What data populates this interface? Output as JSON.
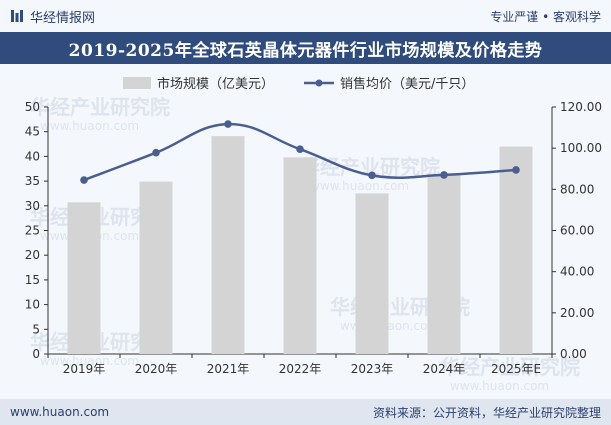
{
  "header": {
    "brand": "华经情报网",
    "tagline": "专业严谨 • 客观科学",
    "title": "2019-2025年全球石英晶体元器件行业市场规模及价格走势"
  },
  "footer": {
    "website": "www.huaon.com",
    "source": "资料来源：公开资料，华经产业研究院整理"
  },
  "watermark": {
    "text": "华经产业研究院",
    "sub": "www.huaon.com"
  },
  "colors": {
    "bar": "#d4d4d4",
    "line": "#4a5f8f",
    "title_bg": "#2f4c7c"
  },
  "chart_data": {
    "type": "bar",
    "categories": [
      "2019年",
      "2020年",
      "2021年",
      "2022年",
      "2023年",
      "2024年",
      "2025年E"
    ],
    "series": [
      {
        "name": "市场规模（亿美元）",
        "type": "bar",
        "axis": "left",
        "values": [
          30.7,
          34.9,
          44.1,
          39.8,
          32.5,
          36.5,
          42.0
        ]
      },
      {
        "name": "销售均价（美元/千只）",
        "type": "line",
        "axis": "right",
        "values": [
          84.5,
          97.8,
          111.7,
          99.5,
          86.8,
          87.0,
          89.4
        ]
      }
    ],
    "left_axis": {
      "min": 0,
      "max": 50,
      "step": 5,
      "ticks": [
        "0",
        "5",
        "10",
        "15",
        "20",
        "25",
        "30",
        "35",
        "40",
        "45",
        "50"
      ]
    },
    "right_axis": {
      "min": 0,
      "max": 120,
      "step": 20,
      "ticks": [
        "0.00",
        "20.00",
        "40.00",
        "60.00",
        "80.00",
        "100.00",
        "120.00"
      ]
    },
    "legend_position": "top-center",
    "grid": false
  }
}
